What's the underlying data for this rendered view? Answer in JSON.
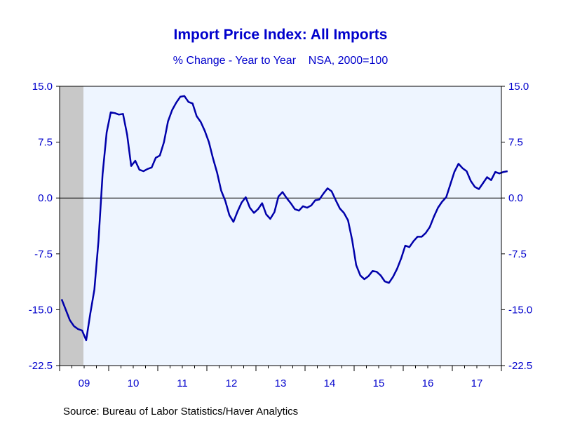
{
  "title": "Import Price Index: All Imports",
  "subtitle": "% Change - Year to Year    NSA, 2000=100",
  "source": "Source:  Bureau of Labor Statistics/Haver Analytics",
  "colors": {
    "line": "#0000aa",
    "text": "#0000cc",
    "plot_background": "#eef5ff",
    "recession_shade": "#c8c8c8",
    "zero_line": "#000000"
  },
  "chart_data": {
    "type": "line",
    "title": "Import Price Index: All Imports",
    "subtitle": "% Change - Year to Year    NSA, 2000=100",
    "xlabel": "",
    "ylabel": "",
    "ylim": [
      -22.5,
      15.0
    ],
    "xlim": [
      "2009-01",
      "2017-12"
    ],
    "y_ticks_left": [
      "15.0",
      "7.5",
      "0.0",
      "-7.5",
      "-15.0",
      "-22.5"
    ],
    "y_ticks_right": [
      "15.0",
      "7.5",
      "0.0",
      "-7.5",
      "-15.0",
      "-22.5"
    ],
    "x_tick_labels": [
      "09",
      "10",
      "11",
      "12",
      "13",
      "14",
      "15",
      "16",
      "17"
    ],
    "grid": false,
    "zero_line": true,
    "shaded_period": {
      "start": "2009-01",
      "end": "2009-06"
    },
    "series": [
      {
        "values": [
          -13.6,
          -15.0,
          -16.4,
          -17.2,
          -17.6,
          -17.8,
          -19.1,
          -15.5,
          -12.3,
          -5.8,
          3.2,
          8.8,
          11.5,
          11.4,
          11.2,
          11.3,
          8.5,
          4.3,
          5.0,
          3.8,
          3.6,
          3.9,
          4.1,
          5.4,
          5.7,
          7.5,
          10.3,
          11.8,
          12.8,
          13.6,
          13.7,
          12.9,
          12.7,
          11.0,
          10.2,
          9.0,
          7.5,
          5.3,
          3.4,
          1.0,
          -0.4,
          -2.3,
          -3.2,
          -1.8,
          -0.6,
          0.1,
          -1.3,
          -2.0,
          -1.5,
          -0.7,
          -2.2,
          -2.8,
          -1.9,
          0.2,
          0.8,
          0.0,
          -0.7,
          -1.5,
          -1.7,
          -1.1,
          -1.3,
          -1.0,
          -0.3,
          -0.2,
          0.6,
          1.3,
          0.9,
          -0.3,
          -1.4,
          -2.0,
          -3.0,
          -5.6,
          -9.0,
          -10.4,
          -10.9,
          -10.5,
          -9.8,
          -9.9,
          -10.4,
          -11.2,
          -11.4,
          -10.6,
          -9.5,
          -8.1,
          -6.4,
          -6.6,
          -5.8,
          -5.2,
          -5.2,
          -4.7,
          -3.9,
          -2.5,
          -1.3,
          -0.5,
          0.1,
          1.8,
          3.5,
          4.6,
          4.0,
          3.6,
          2.3,
          1.5,
          1.2,
          2.0,
          2.8,
          2.4,
          3.5,
          3.3,
          3.5,
          3.6
        ]
      }
    ]
  }
}
